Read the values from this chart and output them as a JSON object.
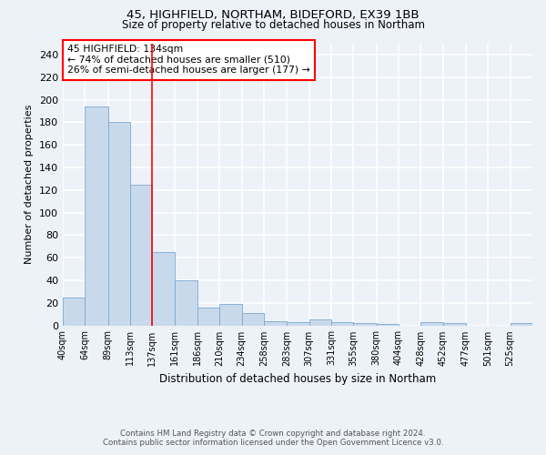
{
  "title1": "45, HIGHFIELD, NORTHAM, BIDEFORD, EX39 1BB",
  "title2": "Size of property relative to detached houses in Northam",
  "xlabel": "Distribution of detached houses by size in Northam",
  "ylabel": "Number of detached properties",
  "footer1": "Contains HM Land Registry data © Crown copyright and database right 2024.",
  "footer2": "Contains public sector information licensed under the Open Government Licence v3.0.",
  "categories": [
    "40sqm",
    "64sqm",
    "89sqm",
    "113sqm",
    "137sqm",
    "161sqm",
    "186sqm",
    "210sqm",
    "234sqm",
    "258sqm",
    "283sqm",
    "307sqm",
    "331sqm",
    "355sqm",
    "380sqm",
    "404sqm",
    "428sqm",
    "452sqm",
    "477sqm",
    "501sqm",
    "525sqm"
  ],
  "values": [
    25,
    194,
    180,
    125,
    65,
    40,
    16,
    19,
    11,
    4,
    3,
    5,
    3,
    2,
    1,
    0,
    3,
    2,
    0,
    0,
    2
  ],
  "bar_color": "#c9d9ec",
  "bar_edge_color": "#7aaacf",
  "annotation_text": "45 HIGHFIELD: 134sqm\n← 74% of detached houses are smaller (510)\n26% of semi-detached houses are larger (177) →",
  "annotation_box_color": "white",
  "annotation_box_edge": "red",
  "vline_x": 137,
  "vline_color": "red",
  "ylim": [
    0,
    250
  ],
  "yticks": [
    0,
    20,
    40,
    60,
    80,
    100,
    120,
    140,
    160,
    180,
    200,
    220,
    240
  ],
  "bg_color": "#edf2f8",
  "plot_bg_color": "#edf2f8",
  "grid_color": "white",
  "property_size_sqm": 134,
  "bin_edges": [
    40,
    64,
    89,
    113,
    137,
    161,
    186,
    210,
    234,
    258,
    283,
    307,
    331,
    355,
    380,
    404,
    428,
    452,
    477,
    501,
    525,
    549
  ]
}
